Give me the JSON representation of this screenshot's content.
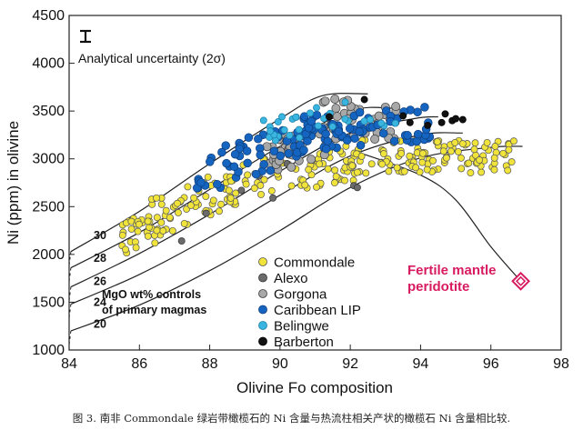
{
  "chart_data": {
    "type": "scatter",
    "xlabel": "Olivine Fo composition",
    "ylabel": "Ni (ppm) in olivine",
    "xlim": [
      84,
      98
    ],
    "ylim": [
      1000,
      4500
    ],
    "x_ticks": [
      "84",
      "86",
      "88",
      "90",
      "92",
      "94",
      "96",
      "98"
    ],
    "y_ticks": [
      "1000",
      "1500",
      "2000",
      "2500",
      "3000",
      "3500",
      "4000",
      "4500"
    ],
    "x_tick_values": [
      84,
      86,
      88,
      90,
      92,
      94,
      96,
      98
    ],
    "y_tick_values": [
      1000,
      1500,
      2000,
      2500,
      3000,
      3500,
      4000,
      4500
    ],
    "uncertainty_label": "Analytical uncertainty (2σ)",
    "annotation_controls": "MgO wt% controls",
    "annotation_primary": "of primary magmas",
    "fertile_label_1": "Fertile mantle",
    "fertile_label_2": "peridotite",
    "fertile_point": {
      "x": 96.85,
      "y": 1720
    },
    "fertile_color": "#d81b60",
    "curves": [
      {
        "label": "30",
        "label_x": 84.7,
        "label_y": 2200,
        "points": [
          [
            84.05,
            2030
          ],
          [
            86,
            2450
          ],
          [
            88,
            2950
          ],
          [
            90,
            3420
          ],
          [
            91.2,
            3660
          ],
          [
            92.5,
            3680
          ]
        ]
      },
      {
        "label": "28",
        "label_x": 84.7,
        "label_y": 1960,
        "points": [
          [
            84.05,
            1860
          ],
          [
            86,
            2230
          ],
          [
            88,
            2680
          ],
          [
            90,
            3130
          ],
          [
            92,
            3500
          ],
          [
            93.2,
            3530
          ]
        ]
      },
      {
        "label": "26",
        "label_x": 84.7,
        "label_y": 1720,
        "points": [
          [
            84.05,
            1660
          ],
          [
            86,
            2010
          ],
          [
            88,
            2420
          ],
          [
            90,
            2870
          ],
          [
            92,
            3270
          ],
          [
            93.8,
            3420
          ],
          [
            94.5,
            3440
          ]
        ]
      },
      {
        "label": "24",
        "label_x": 84.7,
        "label_y": 1500,
        "points": [
          [
            84.05,
            1480
          ],
          [
            86,
            1790
          ],
          [
            88,
            2180
          ],
          [
            90,
            2620
          ],
          [
            92,
            3030
          ],
          [
            94,
            3250
          ],
          [
            95.2,
            3270
          ]
        ]
      },
      {
        "label": "20",
        "label_x": 84.7,
        "label_y": 1270,
        "points": [
          [
            84.05,
            1200
          ],
          [
            86,
            1470
          ],
          [
            88,
            1830
          ],
          [
            90,
            2250
          ],
          [
            92,
            2700
          ],
          [
            94,
            3010
          ],
          [
            96,
            3120
          ],
          [
            96.9,
            3130
          ]
        ]
      }
    ],
    "fertile_curve": [
      [
        92.3,
        3060
      ],
      [
        94,
        2830
      ],
      [
        95,
        2570
      ],
      [
        96,
        2080
      ],
      [
        96.85,
        1720
      ]
    ],
    "series": [
      {
        "name": "Commondale",
        "color": "#f0e33a",
        "edge": "#555555",
        "seed": 11,
        "clusters": [
          {
            "x": [
              85.4,
              88.8
            ],
            "y": [
              2250,
              2700
            ],
            "n": 75,
            "slope": 160
          },
          {
            "x": [
              88.5,
              92.3
            ],
            "y": [
              2650,
              3050
            ],
            "n": 80,
            "slope": 60
          },
          {
            "x": [
              92.0,
              96.7
            ],
            "y": [
              2850,
              3200
            ],
            "n": 110,
            "slope": 0
          },
          {
            "x": [
              85.5,
              86.6
            ],
            "y": [
              2050,
              2350
            ],
            "n": 10,
            "slope": 0
          }
        ]
      },
      {
        "name": "Alexo",
        "color": "#6b6b6b",
        "edge": "#333333",
        "seed": 23,
        "points": [
          [
            87.2,
            2140
          ],
          [
            87.9,
            2430
          ],
          [
            88.9,
            2670
          ],
          [
            89.8,
            2590
          ],
          [
            92.1,
            2720
          ],
          [
            92.2,
            2700
          ],
          [
            89.4,
            2820
          ],
          [
            90.2,
            2950
          ]
        ]
      },
      {
        "name": "Gorgona",
        "color": "#a8a8a8",
        "edge": "#3a3a3a",
        "seed": 37,
        "clusters": [
          {
            "x": [
              89.6,
              91.8
            ],
            "y": [
              2950,
              3300
            ],
            "n": 40,
            "slope": 100
          },
          {
            "x": [
              91.5,
              93.4
            ],
            "y": [
              3200,
              3550
            ],
            "n": 40,
            "slope": 0
          },
          {
            "x": [
              91.2,
              92.0
            ],
            "y": [
              3520,
              3650
            ],
            "n": 5,
            "slope": 0
          }
        ]
      },
      {
        "name": "Caribbean LIP",
        "color": "#1565c0",
        "edge": "#0d3c7a",
        "seed": 41,
        "clusters": [
          {
            "x": [
              87.6,
              91.0
            ],
            "y": [
              2820,
              3250
            ],
            "n": 55,
            "slope": 130
          },
          {
            "x": [
              90.5,
              94.3
            ],
            "y": [
              3100,
              3500
            ],
            "n": 75,
            "slope": 30
          }
        ]
      },
      {
        "name": "Belingwe",
        "color": "#3ab5e0",
        "edge": "#1a7fa8",
        "seed": 53,
        "clusters": [
          {
            "x": [
              89.5,
              93.6
            ],
            "y": [
              3250,
              3620
            ],
            "n": 30,
            "slope": 60
          }
        ]
      },
      {
        "name": "Barberton",
        "color": "#111111",
        "edge": "#000000",
        "seed": 67,
        "points": [
          [
            91.4,
            3440
          ],
          [
            92.4,
            3620
          ],
          [
            93.7,
            3380
          ],
          [
            94.2,
            3350
          ],
          [
            94.6,
            3380
          ],
          [
            94.9,
            3400
          ],
          [
            95.0,
            3420
          ],
          [
            95.2,
            3410
          ],
          [
            94.7,
            3470
          ],
          [
            93.5,
            3450
          ]
        ]
      }
    ],
    "legend_position": "lower-center"
  },
  "caption": "图 3. 南非 Commondale 绿岩带橄榄石的 Ni 含量与热流柱相关产状的橄榄石 Ni 含量相比较."
}
